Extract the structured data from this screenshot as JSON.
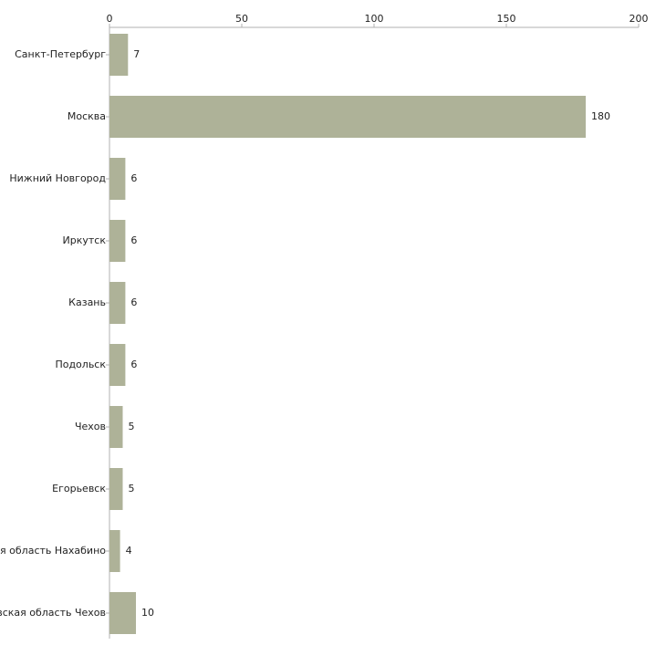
{
  "chart_data": {
    "type": "bar",
    "orientation": "horizontal",
    "categories": [
      "Санкт-Петербург",
      "Москва",
      "Нижний Новгород",
      "Иркутск",
      "Казань",
      "Подольск",
      "Чехов",
      "Егорьевск",
      "Московская область Нахабино",
      "Московская область Чехов"
    ],
    "values": [
      7,
      180,
      6,
      6,
      6,
      6,
      5,
      5,
      4,
      10
    ],
    "value_labels": [
      "7",
      "180",
      "6",
      "6",
      "6",
      "6",
      "5",
      "5",
      "4",
      "10"
    ],
    "xlim": [
      0,
      200
    ],
    "xticks": [
      0,
      50,
      100,
      150,
      200
    ],
    "xtick_labels": [
      "0",
      "50",
      "100",
      "150",
      "200"
    ],
    "axis_position": "top",
    "grid": false,
    "legend": "none",
    "bar_color": "#aeb298",
    "title": "",
    "xlabel": "",
    "ylabel": ""
  }
}
